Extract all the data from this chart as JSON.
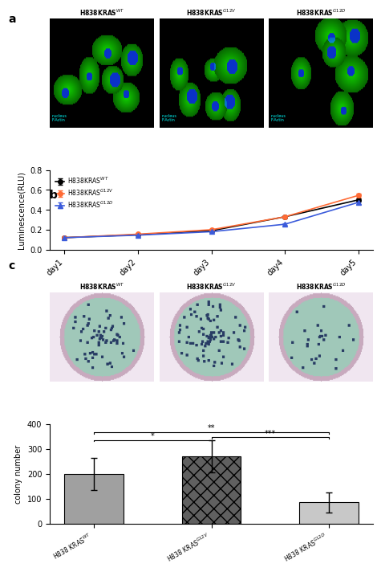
{
  "panel_b": {
    "days": [
      "day1",
      "day2",
      "day3",
      "day4",
      "day5"
    ],
    "wt_values": [
      0.12,
      0.15,
      0.19,
      0.33,
      0.5
    ],
    "wt_err": [
      0.005,
      0.005,
      0.005,
      0.01,
      0.015
    ],
    "g12v_values": [
      0.12,
      0.155,
      0.2,
      0.33,
      0.545
    ],
    "g12v_err": [
      0.005,
      0.005,
      0.008,
      0.01,
      0.02
    ],
    "g12d_values": [
      0.12,
      0.145,
      0.18,
      0.255,
      0.475
    ],
    "g12d_err": [
      0.005,
      0.005,
      0.005,
      0.01,
      0.015
    ],
    "ylabel": "Luminescence(RLU)",
    "ylim": [
      0.0,
      0.8
    ],
    "yticks": [
      0.0,
      0.2,
      0.4,
      0.6,
      0.8
    ],
    "wt_color": "#000000",
    "g12v_color": "#FF6B35",
    "g12d_color": "#3B5BDB",
    "legend_labels": [
      "H838KRAS$^{WT}$",
      "H838KRAS$^{G12V}$",
      "H838KRAS$^{G12D}$"
    ]
  },
  "panel_c_bar": {
    "categories": [
      "H838 KRAS$^{WT}$",
      "H838 KRAS$^{G12V}$",
      "H838 KRAS$^{G12D}$"
    ],
    "values": [
      200,
      270,
      85
    ],
    "errors": [
      65,
      65,
      40
    ],
    "ylabel": "colony number",
    "ylim": [
      0,
      400
    ],
    "yticks": [
      0,
      100,
      200,
      300,
      400
    ],
    "bar_colors": [
      "#808080",
      "#404040",
      "#C0C0C0"
    ],
    "hatch_patterns": [
      "",
      "xx",
      ""
    ]
  },
  "bg_color": "#ffffff",
  "panel_a_label": "a",
  "panel_b_label": "b",
  "panel_c_label": "c"
}
